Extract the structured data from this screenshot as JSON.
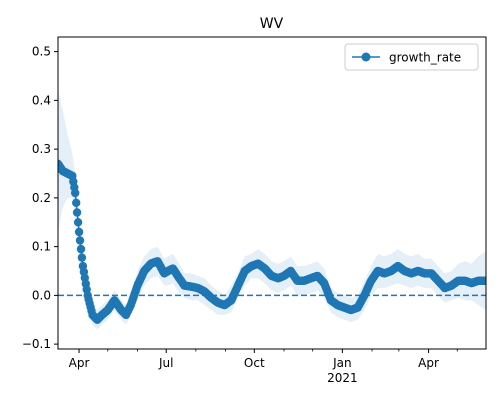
{
  "chart_data": {
    "type": "line",
    "title": "WV",
    "xlabel": "",
    "ylabel": "",
    "x_axis": {
      "type": "date",
      "range": [
        "2020-03-10",
        "2021-05-31"
      ],
      "major_ticks": [
        {
          "date": "2020-04-01",
          "label": "Apr",
          "sublabel": ""
        },
        {
          "date": "2020-07-01",
          "label": "Jul",
          "sublabel": ""
        },
        {
          "date": "2020-10-01",
          "label": "Oct",
          "sublabel": ""
        },
        {
          "date": "2021-01-01",
          "label": "Jan",
          "sublabel": "2021"
        },
        {
          "date": "2021-04-01",
          "label": "Apr",
          "sublabel": ""
        }
      ],
      "minor_ticks": [
        "2020-05-01",
        "2020-06-01",
        "2020-08-01",
        "2020-09-01",
        "2020-11-01",
        "2020-12-01",
        "2021-02-01",
        "2021-03-01",
        "2021-05-01"
      ]
    },
    "y_axis": {
      "range": [
        -0.11,
        0.53
      ],
      "ticks": [
        -0.1,
        0.0,
        0.1,
        0.2,
        0.3,
        0.4,
        0.5
      ],
      "tick_labels": [
        "−0.1",
        "0.0",
        "0.1",
        "0.2",
        "0.3",
        "0.4",
        "0.5"
      ]
    },
    "reference_line": {
      "y": 0.0,
      "style": "dashed",
      "color": "#1f77b4"
    },
    "legend": {
      "position": "top-right",
      "entries": [
        "growth_rate"
      ]
    },
    "colors": {
      "series": "#1f77b4",
      "band": "#dce9f5"
    },
    "series": [
      {
        "name": "growth_rate",
        "marker": "circle",
        "x": [
          "2020-03-10",
          "2020-03-15",
          "2020-03-20",
          "2020-03-25",
          "2020-03-28",
          "2020-04-01",
          "2020-04-05",
          "2020-04-10",
          "2020-04-15",
          "2020-04-20",
          "2020-04-25",
          "2020-05-01",
          "2020-05-08",
          "2020-05-15",
          "2020-05-20",
          "2020-05-25",
          "2020-06-01",
          "2020-06-08",
          "2020-06-15",
          "2020-06-22",
          "2020-06-29",
          "2020-07-03",
          "2020-07-08",
          "2020-07-13",
          "2020-07-20",
          "2020-07-27",
          "2020-08-03",
          "2020-08-10",
          "2020-08-17",
          "2020-08-24",
          "2020-08-31",
          "2020-09-07",
          "2020-09-14",
          "2020-09-21",
          "2020-09-28",
          "2020-10-05",
          "2020-10-12",
          "2020-10-19",
          "2020-10-26",
          "2020-11-01",
          "2020-11-08",
          "2020-11-15",
          "2020-11-22",
          "2020-11-29",
          "2020-12-06",
          "2020-12-13",
          "2020-12-20",
          "2020-12-27",
          "2021-01-03",
          "2021-01-10",
          "2021-01-17",
          "2021-01-24",
          "2021-01-31",
          "2021-02-07",
          "2021-02-14",
          "2021-02-21",
          "2021-02-28",
          "2021-03-07",
          "2021-03-14",
          "2021-03-21",
          "2021-03-28",
          "2021-04-04",
          "2021-04-11",
          "2021-04-18",
          "2021-04-25",
          "2021-05-02",
          "2021-05-09",
          "2021-05-16",
          "2021-05-23",
          "2021-05-31"
        ],
        "y": [
          0.27,
          0.255,
          0.25,
          0.245,
          0.21,
          0.13,
          0.06,
          0.0,
          -0.04,
          -0.05,
          -0.04,
          -0.03,
          -0.01,
          -0.03,
          -0.04,
          -0.02,
          0.02,
          0.05,
          0.065,
          0.07,
          0.045,
          0.05,
          0.055,
          0.04,
          0.02,
          0.018,
          0.015,
          0.008,
          -0.005,
          -0.015,
          -0.02,
          -0.01,
          0.02,
          0.05,
          0.06,
          0.065,
          0.055,
          0.04,
          0.035,
          0.04,
          0.05,
          0.03,
          0.03,
          0.035,
          0.04,
          0.025,
          -0.01,
          -0.02,
          -0.025,
          -0.03,
          -0.025,
          0.0,
          0.03,
          0.05,
          0.045,
          0.05,
          0.06,
          0.05,
          0.045,
          0.05,
          0.045,
          0.045,
          0.03,
          0.015,
          0.02,
          0.03,
          0.03,
          0.025,
          0.03,
          0.03
        ],
        "lower": [
          0.13,
          0.18,
          0.2,
          0.2,
          0.17,
          0.09,
          0.03,
          -0.02,
          -0.06,
          -0.07,
          -0.06,
          -0.05,
          -0.03,
          -0.05,
          -0.06,
          -0.04,
          -0.01,
          0.02,
          0.035,
          0.04,
          0.02,
          0.02,
          0.025,
          0.01,
          -0.005,
          -0.01,
          -0.01,
          -0.02,
          -0.03,
          -0.04,
          -0.04,
          -0.035,
          -0.005,
          0.02,
          0.035,
          0.035,
          0.025,
          0.01,
          0.005,
          0.01,
          0.02,
          0.0,
          0.0,
          0.005,
          0.01,
          -0.005,
          -0.035,
          -0.045,
          -0.05,
          -0.055,
          -0.05,
          -0.03,
          0.0,
          0.015,
          0.015,
          0.02,
          0.025,
          0.02,
          0.015,
          0.02,
          0.015,
          0.015,
          0.0,
          -0.015,
          -0.01,
          -0.005,
          -0.01,
          -0.01,
          -0.02,
          -0.03
        ],
        "upper": [
          0.42,
          0.38,
          0.33,
          0.29,
          0.25,
          0.17,
          0.09,
          0.03,
          -0.02,
          -0.03,
          -0.02,
          -0.01,
          0.01,
          -0.01,
          -0.02,
          0.0,
          0.05,
          0.08,
          0.095,
          0.1,
          0.075,
          0.08,
          0.085,
          0.07,
          0.045,
          0.045,
          0.04,
          0.035,
          0.02,
          0.01,
          0.0,
          0.02,
          0.045,
          0.08,
          0.085,
          0.095,
          0.085,
          0.07,
          0.065,
          0.07,
          0.08,
          0.06,
          0.06,
          0.065,
          0.07,
          0.055,
          0.015,
          0.005,
          0.0,
          -0.005,
          0.0,
          0.03,
          0.06,
          0.085,
          0.08,
          0.085,
          0.095,
          0.085,
          0.08,
          0.085,
          0.075,
          0.075,
          0.06,
          0.045,
          0.05,
          0.065,
          0.07,
          0.065,
          0.08,
          0.09
        ]
      }
    ]
  }
}
